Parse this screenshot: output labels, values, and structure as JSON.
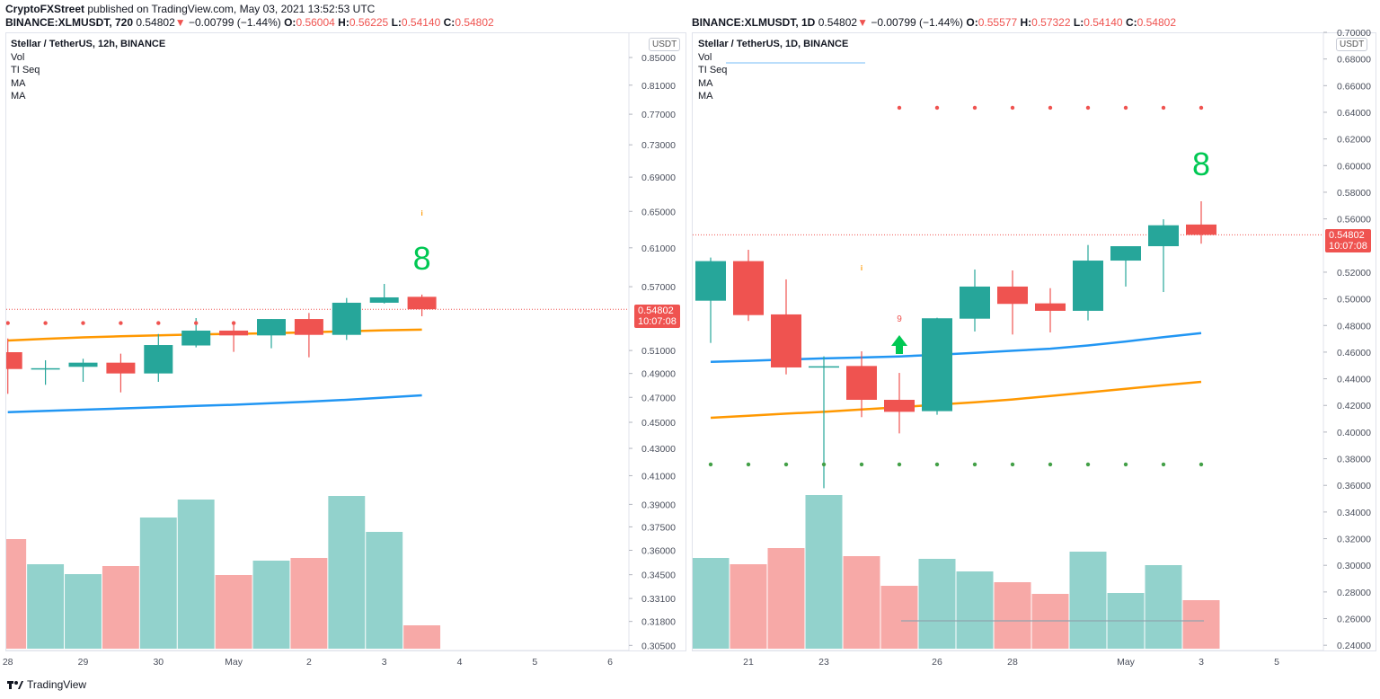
{
  "publisher_line": {
    "author": "CryptoFXStreet",
    "text": "published on TradingView.com, May 03, 2021 13:52:53 UTC"
  },
  "colors": {
    "up": "#26a69a",
    "down": "#ef5350",
    "vol_up": "#92d2cc",
    "vol_down": "#f7a9a7",
    "ma_fast": "#2196f3",
    "ma_slow": "#ff9800",
    "seq_green": "#00c853"
  },
  "panels": [
    {
      "id": "left",
      "symbol_line": {
        "symbol": "BINANCE:XLMUSDT, 720",
        "price": "0.54802",
        "change": "−0.00799 (−1.44%)",
        "o": "0.56004",
        "h": "0.56225",
        "l": "0.54140",
        "c": "0.54802"
      },
      "legend": {
        "title": "Stellar / TetherUS, 12h, BINANCE",
        "items": [
          "Vol",
          "TI Seq",
          "MA",
          "MA"
        ]
      },
      "currency": "USDT",
      "price_tag": {
        "price": "0.54802",
        "countdown": "10:07:08"
      },
      "scale": "log",
      "y_ticks": [
        "0.85000",
        "0.81000",
        "0.77000",
        "0.73000",
        "0.69000",
        "0.65000",
        "0.61000",
        "0.57000",
        "0.51000",
        "0.49000",
        "0.47000",
        "0.45000",
        "0.43000",
        "0.41000",
        "0.39000",
        "0.37500",
        "0.36000",
        "0.34500",
        "0.33100",
        "0.31800",
        "0.30500"
      ],
      "x_ticks": [
        {
          "label": "28",
          "bar": 0
        },
        {
          "label": "29",
          "bar": 2
        },
        {
          "label": "30",
          "bar": 4
        },
        {
          "label": "May",
          "bar": 6
        },
        {
          "label": "2",
          "bar": 8
        },
        {
          "label": "3",
          "bar": 10
        },
        {
          "label": "4",
          "bar": 12
        },
        {
          "label": "5",
          "bar": 14
        },
        {
          "label": "6",
          "bar": 16
        }
      ],
      "candles": [
        [
          0.5085,
          0.5208,
          0.4729,
          0.4938
        ],
        [
          0.4938,
          0.5014,
          0.4804,
          0.4945
        ],
        [
          0.4957,
          0.5027,
          0.4829,
          0.4993
        ],
        [
          0.4993,
          0.5072,
          0.4741,
          0.49
        ],
        [
          0.49,
          0.5249,
          0.4829,
          0.5149
        ],
        [
          0.5145,
          0.5397,
          0.5128,
          0.528
        ],
        [
          0.528,
          0.5346,
          0.5088,
          0.5236
        ],
        [
          0.5236,
          0.5388,
          0.512,
          0.5388
        ],
        [
          0.5388,
          0.5445,
          0.504,
          0.5241
        ],
        [
          0.5241,
          0.5589,
          0.5195,
          0.5543
        ],
        [
          0.5543,
          0.5728,
          0.5535,
          0.5595
        ],
        [
          0.56004,
          0.56225,
          0.5414,
          0.54802
        ]
      ],
      "volume_relative": [
        122,
        94,
        83,
        92,
        146,
        166,
        82,
        98,
        101,
        170,
        130,
        26
      ],
      "ma_fast": [
        0.458,
        0.459,
        0.46,
        0.461,
        0.462,
        0.463,
        0.464,
        0.4652,
        0.4665,
        0.468,
        0.4698,
        0.4717
      ],
      "ma_slow": [
        0.519,
        0.5205,
        0.5218,
        0.5228,
        0.5236,
        0.5244,
        0.525,
        0.5256,
        0.5264,
        0.5274,
        0.5283,
        0.5289
      ],
      "seq_dots_red": {
        "price": 0.535,
        "bars": [
          0,
          1,
          2,
          3,
          4,
          5,
          6
        ]
      },
      "seq_label": {
        "text": "8",
        "bar": 11
      },
      "seq_mark_orange": {
        "bar": 11
      }
    },
    {
      "id": "right",
      "symbol_line": {
        "symbol": "BINANCE:XLMUSDT, 1D",
        "price": "0.54802",
        "change": "−0.00799 (−1.44%)",
        "o": "0.55577",
        "h": "0.57322",
        "l": "0.54140",
        "c": "0.54802"
      },
      "legend": {
        "title": "Stellar / TetherUS, 1D, BINANCE",
        "items": [
          "Vol",
          "TI Seq",
          "MA",
          "MA"
        ]
      },
      "currency": "USDT",
      "price_tag": {
        "price": "0.54802",
        "countdown": "10:07:08"
      },
      "scale": "linear",
      "y_ticks": [
        "0.70000",
        "0.68000",
        "0.66000",
        "0.64000",
        "0.62000",
        "0.60000",
        "0.58000",
        "0.56000",
        "0.52000",
        "0.50000",
        "0.48000",
        "0.46000",
        "0.44000",
        "0.42000",
        "0.40000",
        "0.38000",
        "0.36000",
        "0.34000",
        "0.32000",
        "0.30000",
        "0.28000",
        "0.26000",
        "0.24000"
      ],
      "x_ticks": [
        {
          "label": "21",
          "bar": 1
        },
        {
          "label": "23",
          "bar": 3
        },
        {
          "label": "26",
          "bar": 6
        },
        {
          "label": "28",
          "bar": 8
        },
        {
          "label": "May",
          "bar": 11
        },
        {
          "label": "3",
          "bar": 13
        },
        {
          "label": "5",
          "bar": 15
        }
      ],
      "candles": [
        [
          0.4986,
          0.531,
          0.4669,
          0.5283
        ],
        [
          0.5283,
          0.5368,
          0.4834,
          0.4878
        ],
        [
          0.4883,
          0.5146,
          0.4433,
          0.4485
        ],
        [
          0.449,
          0.4568,
          0.3579,
          0.4494
        ],
        [
          0.4496,
          0.4606,
          0.4112,
          0.4242
        ],
        [
          0.4242,
          0.4444,
          0.399,
          0.4152
        ],
        [
          0.4157,
          0.4858,
          0.413,
          0.4854
        ],
        [
          0.4851,
          0.522,
          0.4755,
          0.5092
        ],
        [
          0.5092,
          0.5213,
          0.4732,
          0.4962
        ],
        [
          0.4966,
          0.508,
          0.4748,
          0.491
        ],
        [
          0.491,
          0.5404,
          0.4838,
          0.5287
        ],
        [
          0.5287,
          0.5395,
          0.5092,
          0.5395
        ],
        [
          0.5395,
          0.5597,
          0.5051,
          0.5552
        ],
        [
          0.55577,
          0.57322,
          0.5414,
          0.54802
        ]
      ],
      "volume_relative": [
        101,
        94,
        112,
        171,
        103,
        70,
        100,
        86,
        74,
        61,
        108,
        62,
        93,
        54
      ],
      "ma_fast": [
        0.4527,
        0.4535,
        0.4545,
        0.4553,
        0.456,
        0.4568,
        0.458,
        0.4595,
        0.461,
        0.4626,
        0.465,
        0.468,
        0.4712,
        0.4743
      ],
      "ma_slow": [
        0.4107,
        0.4122,
        0.4138,
        0.4152,
        0.417,
        0.4186,
        0.4206,
        0.4224,
        0.4245,
        0.4271,
        0.4298,
        0.4325,
        0.4352,
        0.4377
      ],
      "seq_dots_red": {
        "price": 0.6434,
        "bars": [
          5,
          6,
          7,
          8,
          9,
          10,
          11,
          12,
          13
        ]
      },
      "seq_dots_green": {
        "price": 0.3757,
        "bars": [
          0,
          1,
          2,
          3,
          4,
          5,
          6,
          7,
          8,
          9,
          10,
          11,
          12,
          13
        ]
      },
      "seq_label": {
        "text": "8",
        "bar": 13
      },
      "seq_nine": {
        "text": "9",
        "bar": 5
      },
      "seq_arrow": {
        "bar": 5
      },
      "seq_mark_orange": {
        "bar": 4
      }
    }
  ],
  "footer": {
    "brand": "TradingView"
  }
}
